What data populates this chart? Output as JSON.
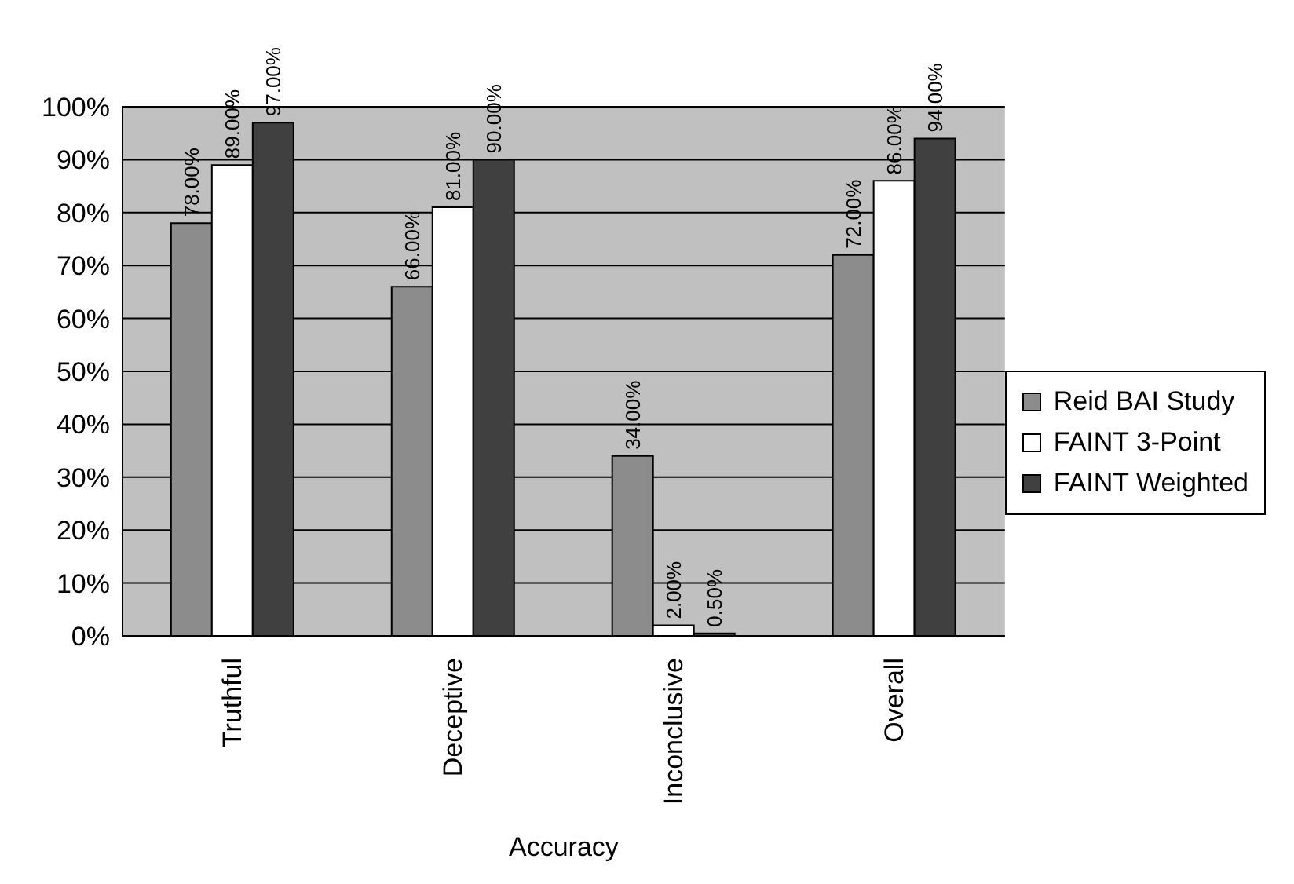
{
  "chart_data": {
    "type": "bar",
    "xlabel": "Accuracy",
    "categories": [
      "Truthful",
      "Deceptive",
      "Inconclusive",
      "Overall"
    ],
    "series": [
      {
        "name": "Reid BAI Study",
        "color": "#8c8c8c",
        "values": [
          78,
          66,
          34,
          72
        ],
        "value_labels": [
          "78.00%",
          "66.00%",
          "34.00%",
          "72.00%"
        ]
      },
      {
        "name": "FAINT 3-Point",
        "color": "#ffffff",
        "values": [
          89,
          81,
          2,
          86
        ],
        "value_labels": [
          "89.00%",
          "81.00%",
          "2.00%",
          "86.00%"
        ]
      },
      {
        "name": "FAINT Weighted",
        "color": "#404040",
        "values": [
          97,
          90,
          0.5,
          94
        ],
        "value_labels": [
          "97.00%",
          "90.00%",
          "0.50%",
          "94.00%"
        ]
      }
    ],
    "ylim": [
      0,
      100
    ],
    "yticks": [
      {
        "value": 0,
        "label": "0%"
      },
      {
        "value": 10,
        "label": "10%"
      },
      {
        "value": 20,
        "label": "20%"
      },
      {
        "value": 30,
        "label": "30%"
      },
      {
        "value": 40,
        "label": "40%"
      },
      {
        "value": 50,
        "label": "50%"
      },
      {
        "value": 60,
        "label": "60%"
      },
      {
        "value": 70,
        "label": "70%"
      },
      {
        "value": 80,
        "label": "80%"
      },
      {
        "value": 90,
        "label": "90%"
      },
      {
        "value": 100,
        "label": "100%"
      }
    ],
    "grid": "y",
    "legend": "right"
  }
}
